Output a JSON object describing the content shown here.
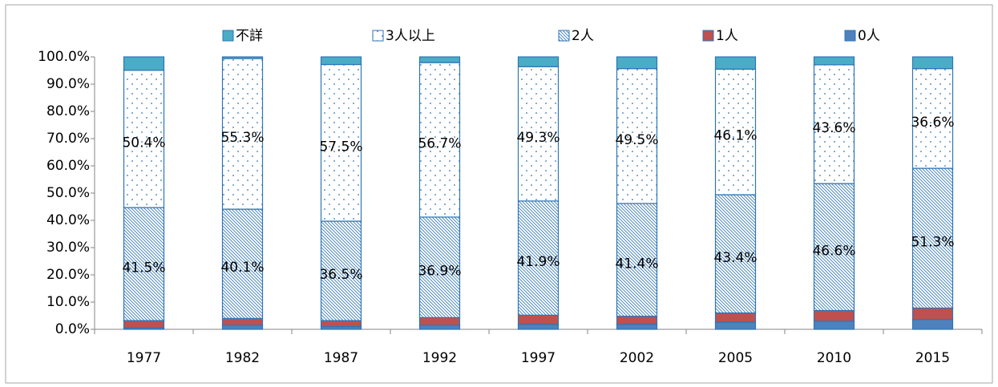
{
  "chart_data": {
    "type": "stacked_bar",
    "categories": [
      "1977",
      "1982",
      "1987",
      "1992",
      "1997",
      "2002",
      "2005",
      "2010",
      "2015"
    ],
    "series": [
      {
        "name": "0人",
        "color": "#4f81bd",
        "values": [
          0.5,
          1.5,
          1.0,
          1.5,
          1.8,
          1.8,
          2.6,
          3.0,
          3.6
        ]
      },
      {
        "name": "1人",
        "color": "#c0504d",
        "values": [
          2.7,
          2.5,
          2.2,
          2.8,
          3.4,
          3.0,
          3.4,
          3.9,
          4.2
        ]
      },
      {
        "name": "2人",
        "color": "#2e75b6",
        "pattern": "hatch",
        "values": [
          41.5,
          40.1,
          36.5,
          36.9,
          41.9,
          41.4,
          43.4,
          46.6,
          51.3
        ],
        "value_labels": [
          "41.5%",
          "40.1%",
          "36.5%",
          "36.9%",
          "41.9%",
          "41.4%",
          "43.4%",
          "46.6%",
          "51.3%"
        ]
      },
      {
        "name": "3人以上",
        "color": "#2e75b6",
        "pattern": "dots",
        "values": [
          50.4,
          55.3,
          57.5,
          56.7,
          49.3,
          49.5,
          46.1,
          43.6,
          36.6
        ],
        "value_labels": [
          "50.4%",
          "55.3%",
          "57.5%",
          "56.7%",
          "49.3%",
          "49.5%",
          "46.1%",
          "43.6%",
          "36.6%"
        ]
      },
      {
        "name": "不詳",
        "color": "#4bacc6",
        "values": [
          4.9,
          0.6,
          2.8,
          2.1,
          3.6,
          4.3,
          4.5,
          2.9,
          4.3
        ]
      }
    ],
    "ylim": [
      0,
      100
    ],
    "yticks": [
      {
        "value": 0,
        "label": "0.0%"
      },
      {
        "value": 10,
        "label": "10.0%"
      },
      {
        "value": 20,
        "label": "20.0%"
      },
      {
        "value": 30,
        "label": "30.0%"
      },
      {
        "value": 40,
        "label": "40.0%"
      },
      {
        "value": 50,
        "label": "50.0%"
      },
      {
        "value": 60,
        "label": "60.0%"
      },
      {
        "value": 70,
        "label": "70.0%"
      },
      {
        "value": 80,
        "label": "80.0%"
      },
      {
        "value": 90,
        "label": "90.0%"
      },
      {
        "value": 100,
        "label": "100.0%"
      }
    ],
    "legend": "top"
  }
}
